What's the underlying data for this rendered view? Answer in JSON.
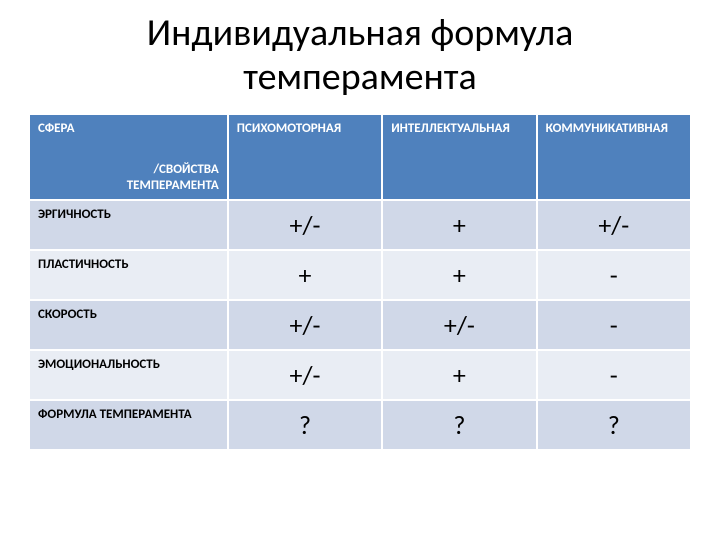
{
  "title": "Индивидуальная формула темперамента",
  "table": {
    "header_bg": "#4f81bd",
    "header_color": "#ffffff",
    "band_a": "#d0d8e8",
    "band_b": "#e9edf4",
    "border_color": "#ffffff",
    "corner_top": "СФЕРА",
    "corner_bottom_line1": "/СВОЙСТВА",
    "corner_bottom_line2": "ТЕМПЕРАМЕНТА",
    "columns": [
      "ПСИХОМОТОРНАЯ",
      "ИНТЕЛЛЕКТУАЛЬНАЯ",
      "КОММУНИКАТИВНАЯ"
    ],
    "rows": [
      {
        "label": "ЭРГИЧНОСТЬ",
        "cells": [
          "+/-",
          "+",
          "+/-"
        ]
      },
      {
        "label": "ПЛАСТИЧНОСТЬ",
        "cells": [
          "+",
          "+",
          "-"
        ]
      },
      {
        "label": "СКОРОСТЬ",
        "cells": [
          "+/-",
          "+/-",
          "-"
        ]
      },
      {
        "label": "ЭМОЦИОНАЛЬНОСТЬ",
        "cells": [
          "+/-",
          "+",
          "-"
        ]
      },
      {
        "label": "ФОРМУЛА ТЕМПЕРАМЕНТА",
        "cells": [
          "?",
          "?",
          "?"
        ]
      }
    ]
  }
}
